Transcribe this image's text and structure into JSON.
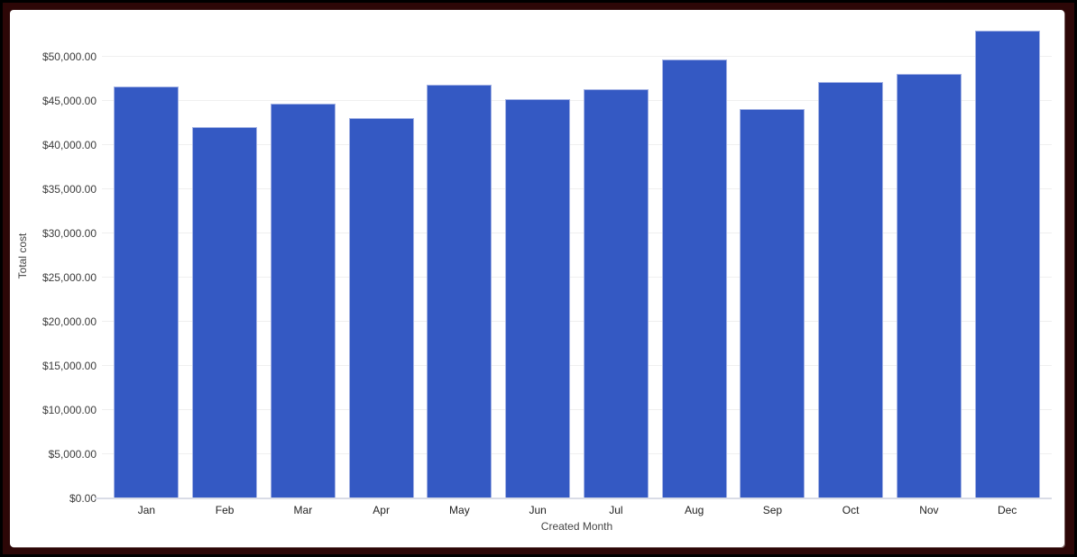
{
  "frame": {
    "outer_color": "#000000",
    "border_color": "#2d0707",
    "card_color": "#ffffff"
  },
  "chart_data": {
    "type": "bar",
    "title": "",
    "xlabel": "Created Month",
    "ylabel": "Total cost",
    "categories": [
      "Jan",
      "Feb",
      "Mar",
      "Apr",
      "May",
      "Jun",
      "Jul",
      "Aug",
      "Sep",
      "Oct",
      "Nov",
      "Dec"
    ],
    "values": [
      46650,
      42050,
      44700,
      43100,
      46850,
      45250,
      46350,
      49700,
      44100,
      47100,
      48050,
      53000
    ],
    "ylim": [
      0,
      55000
    ],
    "ytick_step": 5000,
    "yticks": [
      {
        "value": 0,
        "label": "$0.00"
      },
      {
        "value": 5000,
        "label": "$5,000.00"
      },
      {
        "value": 10000,
        "label": "$10,000.00"
      },
      {
        "value": 15000,
        "label": "$15,000.00"
      },
      {
        "value": 20000,
        "label": "$20,000.00"
      },
      {
        "value": 25000,
        "label": "$25,000.00"
      },
      {
        "value": 30000,
        "label": "$30,000.00"
      },
      {
        "value": 35000,
        "label": "$35,000.00"
      },
      {
        "value": 40000,
        "label": "$40,000.00"
      },
      {
        "value": 45000,
        "label": "$45,000.00"
      },
      {
        "value": 50000,
        "label": "$50,000.00"
      }
    ],
    "grid": true,
    "legend_position": "none",
    "bar_color": "#3459c3",
    "bar_stroke_color": "#a3b2e4",
    "gridline_color": "#efefef",
    "axis_line_color": "#d9dce6",
    "tick_label_color": "#3c3c3c",
    "axis_title_color": "#444444"
  }
}
